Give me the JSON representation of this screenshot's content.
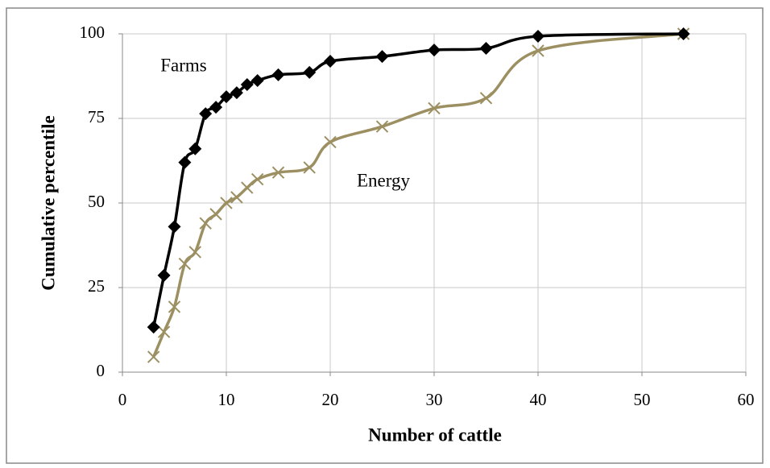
{
  "chart_data": {
    "type": "line",
    "xlabel": "Number of cattle",
    "ylabel": "Cumulative percentile",
    "annotations": [
      "Farms",
      "Energy"
    ],
    "x": [
      3,
      4,
      5,
      6,
      7,
      8,
      9,
      10,
      11,
      12,
      13,
      15,
      18,
      20,
      25,
      30,
      35,
      40,
      54
    ],
    "series": [
      {
        "name": "Farms",
        "color": "#000000",
        "marker": "diamond",
        "values": [
          13.3,
          28.6,
          43,
          62,
          66,
          76.4,
          78.3,
          81.4,
          82.6,
          85,
          86.2,
          87.9,
          88.6,
          91.9,
          93.3,
          95.2,
          95.7,
          99.3,
          100
        ]
      },
      {
        "name": "Energy",
        "color": "#9c9062",
        "marker": "x",
        "values": [
          4.5,
          11.9,
          19.3,
          32,
          35.5,
          44,
          46.7,
          50,
          51.7,
          54.5,
          57,
          59,
          60.5,
          68,
          72.6,
          78,
          81,
          95,
          100
        ]
      }
    ],
    "xlim": [
      0,
      60
    ],
    "xticks": [
      0,
      10,
      20,
      30,
      40,
      50,
      60
    ],
    "ylim": [
      0,
      100
    ],
    "yticks": [
      0,
      25,
      50,
      75,
      100
    ],
    "grid": true
  }
}
